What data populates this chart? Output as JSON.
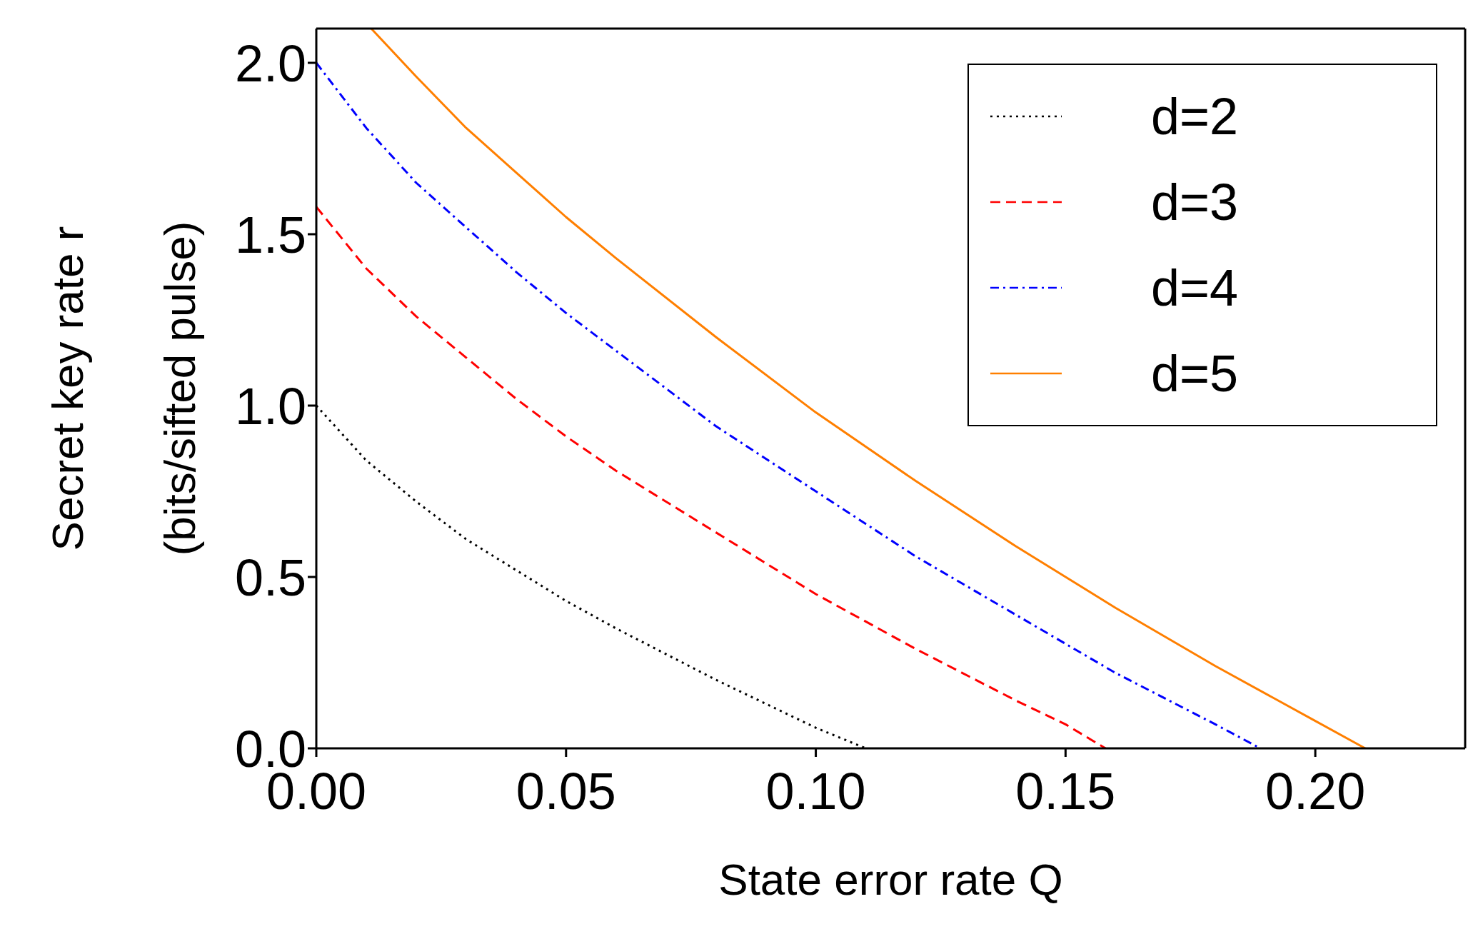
{
  "chart_data": {
    "type": "line",
    "xlabel": "State error rate Q",
    "ylabel": "Secret key rate r\n(bits/sifted pulse)",
    "xlim": [
      0,
      0.23
    ],
    "ylim": [
      0,
      2.1
    ],
    "xticks": [
      {
        "value": 0,
        "label": "0.00"
      },
      {
        "value": 0.05,
        "label": "0.05"
      },
      {
        "value": 0.1,
        "label": "0.10"
      },
      {
        "value": 0.15,
        "label": "0.15"
      },
      {
        "value": 0.2,
        "label": "0.20"
      }
    ],
    "yticks": [
      {
        "value": 0,
        "label": "0.0"
      },
      {
        "value": 0.5,
        "label": "0.5"
      },
      {
        "value": 1,
        "label": "1.0"
      },
      {
        "value": 1.5,
        "label": "1.5"
      },
      {
        "value": 2,
        "label": "2.0"
      }
    ],
    "grid": false,
    "legend": "top right",
    "marker": "none",
    "series": [
      {
        "name": "d=2",
        "color": "#000000",
        "line_style": "dotted",
        "x": [
          0,
          0.01,
          0.02,
          0.03,
          0.04,
          0.05,
          0.06,
          0.08,
          0.1,
          0.11
        ],
        "values": [
          1.0,
          0.84,
          0.72,
          0.61,
          0.52,
          0.43,
          0.35,
          0.2,
          0.06,
          0.0
        ]
      },
      {
        "name": "d=3",
        "color": "#ff0000",
        "line_style": "dashed",
        "x": [
          0,
          0.01,
          0.02,
          0.03,
          0.04,
          0.05,
          0.06,
          0.08,
          0.1,
          0.12,
          0.14,
          0.15,
          0.158
        ],
        "values": [
          1.58,
          1.4,
          1.26,
          1.14,
          1.02,
          0.91,
          0.81,
          0.63,
          0.45,
          0.29,
          0.14,
          0.07,
          0.0
        ]
      },
      {
        "name": "d=4",
        "color": "#0000ff",
        "line_style": "dashdot",
        "x": [
          0,
          0.01,
          0.02,
          0.03,
          0.04,
          0.05,
          0.06,
          0.08,
          0.1,
          0.12,
          0.14,
          0.16,
          0.18,
          0.189
        ],
        "values": [
          2.0,
          1.81,
          1.65,
          1.52,
          1.39,
          1.27,
          1.16,
          0.94,
          0.75,
          0.56,
          0.39,
          0.22,
          0.07,
          0.0
        ]
      },
      {
        "name": "d=5",
        "color": "#ff7f00",
        "line_style": "solid",
        "x": [
          0.011,
          0.02,
          0.03,
          0.04,
          0.05,
          0.06,
          0.08,
          0.1,
          0.12,
          0.14,
          0.16,
          0.18,
          0.2,
          0.21
        ],
        "values": [
          2.1,
          1.96,
          1.81,
          1.68,
          1.55,
          1.43,
          1.2,
          0.98,
          0.78,
          0.59,
          0.41,
          0.24,
          0.08,
          0.0
        ]
      }
    ]
  }
}
